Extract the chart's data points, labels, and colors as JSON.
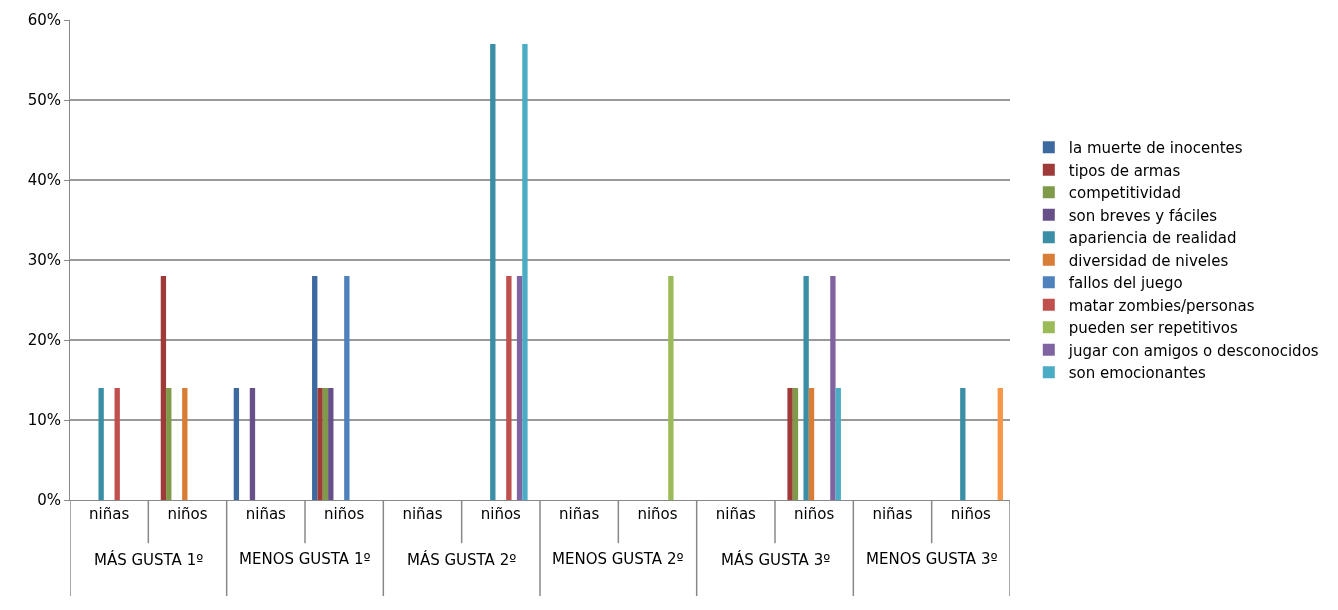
{
  "chart_data": {
    "type": "bar",
    "categories": [
      "niñas",
      "niños",
      "niñas",
      "niños",
      "niñas",
      "niños",
      "niñas",
      "niños",
      "niñas",
      "niños",
      "niñas",
      "niños"
    ],
    "annotations": [
      "MÁS GUSTA 1º",
      "MENOS GUSTA 1º",
      "MÁS GUSTA 2º",
      "MENOS GUSTA 2º",
      "MÁS GUSTA 3º",
      "MENOS GUSTA 3º"
    ],
    "series": [
      {
        "name": "la muerte de inocentes",
        "color": "#3c6aa0",
        "values": [
          0,
          0,
          14,
          28,
          0,
          0,
          0,
          0,
          0,
          0,
          0,
          0
        ]
      },
      {
        "name": "tipos de armas",
        "color": "#9e3b38",
        "values": [
          0,
          28,
          0,
          14,
          0,
          0,
          0,
          0,
          0,
          14,
          0,
          0
        ]
      },
      {
        "name": "competitividad",
        "color": "#7f9a48",
        "values": [
          0,
          14,
          0,
          14,
          0,
          0,
          0,
          0,
          0,
          14,
          0,
          0
        ]
      },
      {
        "name": "son breves y fáciles",
        "color": "#67508a",
        "values": [
          0,
          0,
          14,
          14,
          0,
          0,
          0,
          0,
          0,
          0,
          0,
          0
        ]
      },
      {
        "name": "apariencia de realidad",
        "color": "#3a8fa6",
        "values": [
          14,
          0,
          0,
          0,
          0,
          57,
          0,
          0,
          0,
          28,
          0,
          14
        ]
      },
      {
        "name": "diversidad de niveles",
        "color": "#d97c35",
        "values": [
          0,
          14,
          0,
          0,
          0,
          0,
          0,
          0,
          0,
          14,
          0,
          0
        ]
      },
      {
        "name": "fallos del juego",
        "color": "#4f81bd",
        "values": [
          0,
          0,
          0,
          28,
          0,
          0,
          0,
          0,
          0,
          0,
          0,
          0
        ]
      },
      {
        "name": "matar zombies/personas",
        "color": "#c0504d",
        "values": [
          14,
          0,
          0,
          0,
          0,
          28,
          0,
          0,
          0,
          0,
          0,
          0
        ]
      },
      {
        "name": "pueden ser repetitivos",
        "color": "#9bbb59",
        "values": [
          0,
          0,
          0,
          0,
          0,
          0,
          0,
          28,
          0,
          0,
          0,
          0
        ]
      },
      {
        "name": "jugar con amigos o desconocidos",
        "color": "#8064a2",
        "values": [
          0,
          0,
          0,
          0,
          0,
          28,
          0,
          0,
          0,
          28,
          0,
          0
        ]
      },
      {
        "name": "son emocionantes",
        "color": "#4bacc6",
        "values": [
          0,
          0,
          0,
          0,
          0,
          57,
          0,
          0,
          0,
          14,
          0,
          0
        ]
      },
      {
        "color": "#f79646",
        "values": [
          0,
          0,
          0,
          0,
          0,
          0,
          0,
          0,
          0,
          0,
          0,
          14
        ]
      }
    ],
    "ylim": [
      0,
      60
    ],
    "yticks": [
      {
        "value": 0,
        "label": "0%"
      },
      {
        "value": 10,
        "label": "10%"
      },
      {
        "value": 20,
        "label": "20%"
      },
      {
        "value": 30,
        "label": "30%"
      },
      {
        "value": 40,
        "label": "40%"
      },
      {
        "value": 50,
        "label": "50%"
      },
      {
        "value": 60,
        "label": "60%"
      }
    ],
    "grid": "y",
    "legend": "right"
  }
}
